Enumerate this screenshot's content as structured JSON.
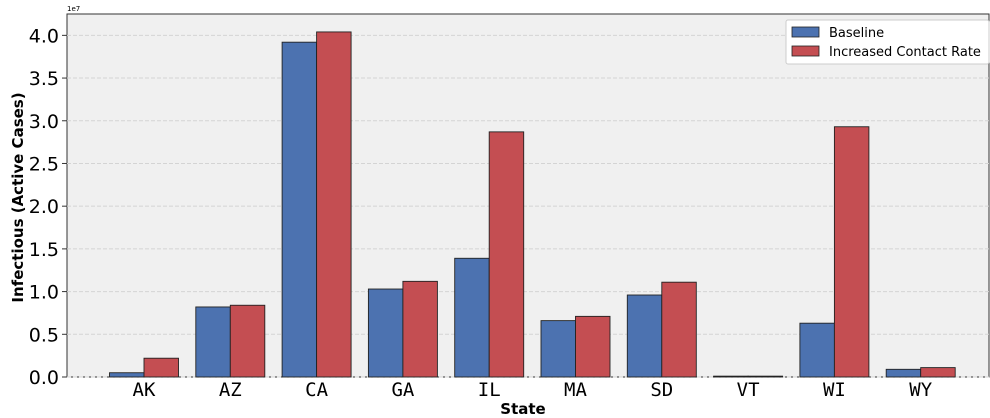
{
  "chart_data": {
    "type": "bar",
    "categories": [
      "AK",
      "AZ",
      "CA",
      "GA",
      "IL",
      "MA",
      "SD",
      "VT",
      "WI",
      "WY"
    ],
    "series": [
      {
        "name": "Baseline",
        "color": "#4c72b0",
        "values": [
          0.05,
          0.82,
          3.92,
          1.03,
          1.39,
          0.66,
          0.96,
          0.01,
          0.63,
          0.09
        ]
      },
      {
        "name": "Increased Contact Rate",
        "color": "#c44e52",
        "values": [
          0.22,
          0.84,
          4.04,
          1.12,
          2.87,
          0.71,
          1.11,
          0.01,
          2.93,
          0.11
        ]
      }
    ],
    "scale_label": "1e7",
    "xlabel": "State",
    "ylabel": "Infectious (Active Cases)",
    "ylim": [
      0,
      4.25
    ],
    "yticks": [
      "0.0",
      "0.5",
      "1.0",
      "1.5",
      "2.0",
      "2.5",
      "3.0",
      "3.5",
      "4.0"
    ],
    "grid": "horizontal",
    "legend_position": "top-right",
    "background": "#f0f0f0"
  }
}
